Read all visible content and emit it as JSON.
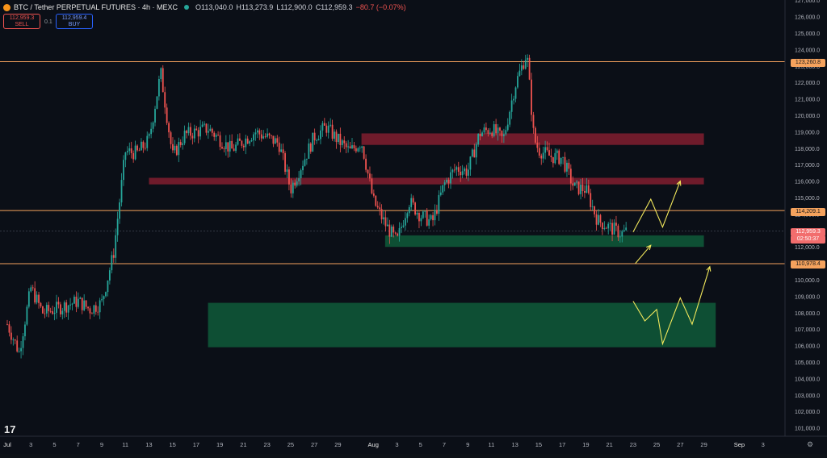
{
  "header": {
    "symbol": "BTC / Tether PERPETUAL FUTURES · 4h · MEXC",
    "open": "O113,040.0",
    "high": "H113,273.9",
    "low": "L112,900.0",
    "close": "C112,959.3",
    "change": "−80.7 (−0.07%)",
    "sell_price": "112,959.3",
    "sell_label": "SELL",
    "spread": "0.1",
    "buy_price": "112,959.4",
    "buy_label": "BUY"
  },
  "price_axis": {
    "ticks": [
      "127,000.0",
      "126,000.0",
      "125,000.0",
      "124,000.0",
      "123,000.0",
      "122,000.0",
      "121,000.0",
      "120,000.0",
      "119,000.0",
      "118,000.0",
      "117,000.0",
      "116,000.0",
      "115,000.0",
      "114,000.0",
      "113,000.0",
      "112,000.0",
      "111,000.0",
      "110,000.0",
      "109,000.0",
      "108,000.0",
      "107,000.0",
      "106,000.0",
      "105,000.0",
      "104,000.0",
      "103,000.0",
      "102,000.0",
      "101,000.0"
    ],
    "labels": {
      "level_123260": "123,260.8",
      "level_114209": "114,209.1",
      "current_price": "112,959.3",
      "countdown": "02:50:37",
      "level_110978": "110,978.4"
    }
  },
  "time_axis": {
    "ticks": [
      "Jul",
      "3",
      "5",
      "7",
      "9",
      "11",
      "13",
      "15",
      "17",
      "19",
      "21",
      "23",
      "25",
      "27",
      "29",
      "Aug",
      "3",
      "5",
      "7",
      "9",
      "11",
      "13",
      "15",
      "17",
      "19",
      "21",
      "23",
      "25",
      "27",
      "29",
      "Sep",
      "3"
    ]
  },
  "colors": {
    "background": "#0b0f17",
    "up": "#26a69a",
    "down": "#ef5350",
    "resistance_zone": "#7a1d2e",
    "support_zone": "#0f5a3a",
    "level_line": "#f5a25d",
    "projection": "#f2e85c"
  },
  "chart_data": {
    "type": "candlestick",
    "title": "BTC / Tether PERPETUAL FUTURES · 4h · MEXC",
    "ylim": [
      100500,
      127200
    ],
    "x_range": [
      "Jul 1",
      "Sep 4"
    ],
    "grid": false,
    "close_path": [
      [
        "Jul 1",
        107300
      ],
      [
        "Jul 2",
        105600
      ],
      [
        "Jul 3",
        109500
      ],
      [
        "Jul 4",
        108000
      ],
      [
        "Jul 5",
        108200
      ],
      [
        "Jul 7",
        108700
      ],
      [
        "Jul 8",
        108200
      ],
      [
        "Jul 9",
        108600
      ],
      [
        "Jul 10",
        111600
      ],
      [
        "Jul 11",
        117800
      ],
      [
        "Jul 12",
        117700
      ],
      [
        "Jul 13",
        118500
      ],
      [
        "Jul 14",
        122600
      ],
      [
        "Jul 15",
        117500
      ],
      [
        "Jul 16",
        118800
      ],
      [
        "Jul 18",
        119200
      ],
      [
        "Jul 20",
        117900
      ],
      [
        "Jul 22",
        119000
      ],
      [
        "Jul 24",
        118300
      ],
      [
        "Jul 25",
        115500
      ],
      [
        "Jul 27",
        118700
      ],
      [
        "Jul 28",
        119300
      ],
      [
        "Jul 29",
        118500
      ],
      [
        "Jul 30",
        117800
      ],
      [
        "Jul 31",
        118400
      ],
      [
        "Aug 1",
        114800
      ],
      [
        "Aug 2",
        113400
      ],
      [
        "Aug 3",
        112300
      ],
      [
        "Aug 4",
        114800
      ],
      [
        "Aug 5",
        113900
      ],
      [
        "Aug 6",
        113500
      ],
      [
        "Aug 7",
        115800
      ],
      [
        "Aug 8",
        116800
      ],
      [
        "Aug 9",
        116600
      ],
      [
        "Aug 10",
        118900
      ],
      [
        "Aug 11",
        119200
      ],
      [
        "Aug 12",
        118500
      ],
      [
        "Aug 13",
        121800
      ],
      [
        "Aug 14",
        123800
      ],
      [
        "Aug 14.6",
        118600
      ],
      [
        "Aug 15",
        117900
      ],
      [
        "Aug 16",
        117500
      ],
      [
        "Aug 17",
        117400
      ],
      [
        "Aug 18",
        115600
      ],
      [
        "Aug 19",
        115500
      ],
      [
        "Aug 20",
        113600
      ],
      [
        "Aug 21",
        113200
      ],
      [
        "Aug 22",
        112800
      ],
      [
        "Aug 22.5",
        112959
      ]
    ],
    "horizontal_levels": [
      123260.8,
      114209.1,
      110978.4
    ],
    "zones": [
      {
        "kind": "resistance",
        "from": "Jul 31",
        "to": "Aug 29",
        "low": 118200,
        "high": 118900
      },
      {
        "kind": "resistance",
        "from": "Jul 13",
        "to": "Aug 29",
        "low": 115800,
        "high": 116200
      },
      {
        "kind": "support",
        "from": "Aug 2",
        "to": "Aug 29",
        "low": 112000,
        "high": 112700
      },
      {
        "kind": "support",
        "from": "Jul 18",
        "to": "Aug 30",
        "low": 105900,
        "high": 108600
      }
    ],
    "projections": [
      [
        [
          "Aug 23",
          112900
        ],
        [
          "Aug 24.5",
          114900
        ],
        [
          "Aug 25.5",
          113200
        ],
        [
          "Aug 27",
          116000
        ]
      ],
      [
        [
          "Aug 23.2",
          111000
        ],
        [
          "Aug 24.5",
          112100
        ]
      ],
      [
        [
          "Aug 23",
          108700
        ],
        [
          "Aug 24",
          107500
        ],
        [
          "Aug 25",
          108200
        ],
        [
          "Aug 25.5",
          106100
        ],
        [
          "Aug 27",
          108900
        ],
        [
          "Aug 28",
          107300
        ],
        [
          "Aug 29.5",
          110800
        ]
      ]
    ]
  }
}
